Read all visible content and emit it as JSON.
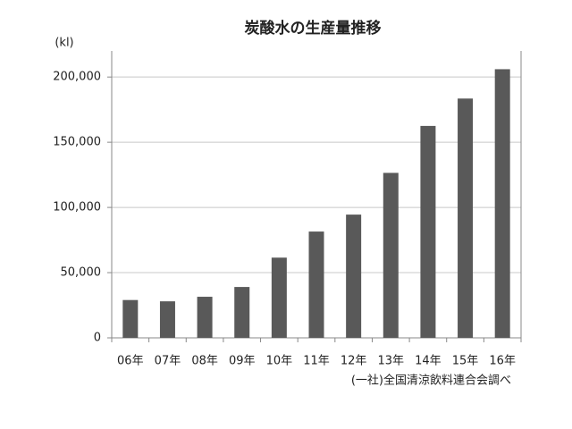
{
  "chart_data": {
    "type": "bar",
    "title": "炭酸水の生産量推移",
    "y_axis_label": "(kl)",
    "source": "(一社)全国清涼飲料連合会調べ",
    "categories": [
      "06年",
      "07年",
      "08年",
      "09年",
      "10年",
      "11年",
      "12年",
      "13年",
      "14年",
      "15年",
      "16年"
    ],
    "values": [
      29000,
      28000,
      31500,
      39000,
      61500,
      81500,
      94500,
      126500,
      162500,
      183500,
      206000
    ],
    "color": "#595959",
    "ylim": [
      0,
      220000
    ],
    "yticks": [
      0,
      {
        "value": 50000,
        "label": "50,000"
      },
      {
        "value": 100000,
        "label": "100,000"
      },
      {
        "value": 150000,
        "label": "150,000"
      },
      {
        "value": 200000,
        "label": "200,000"
      }
    ],
    "grid": true
  }
}
